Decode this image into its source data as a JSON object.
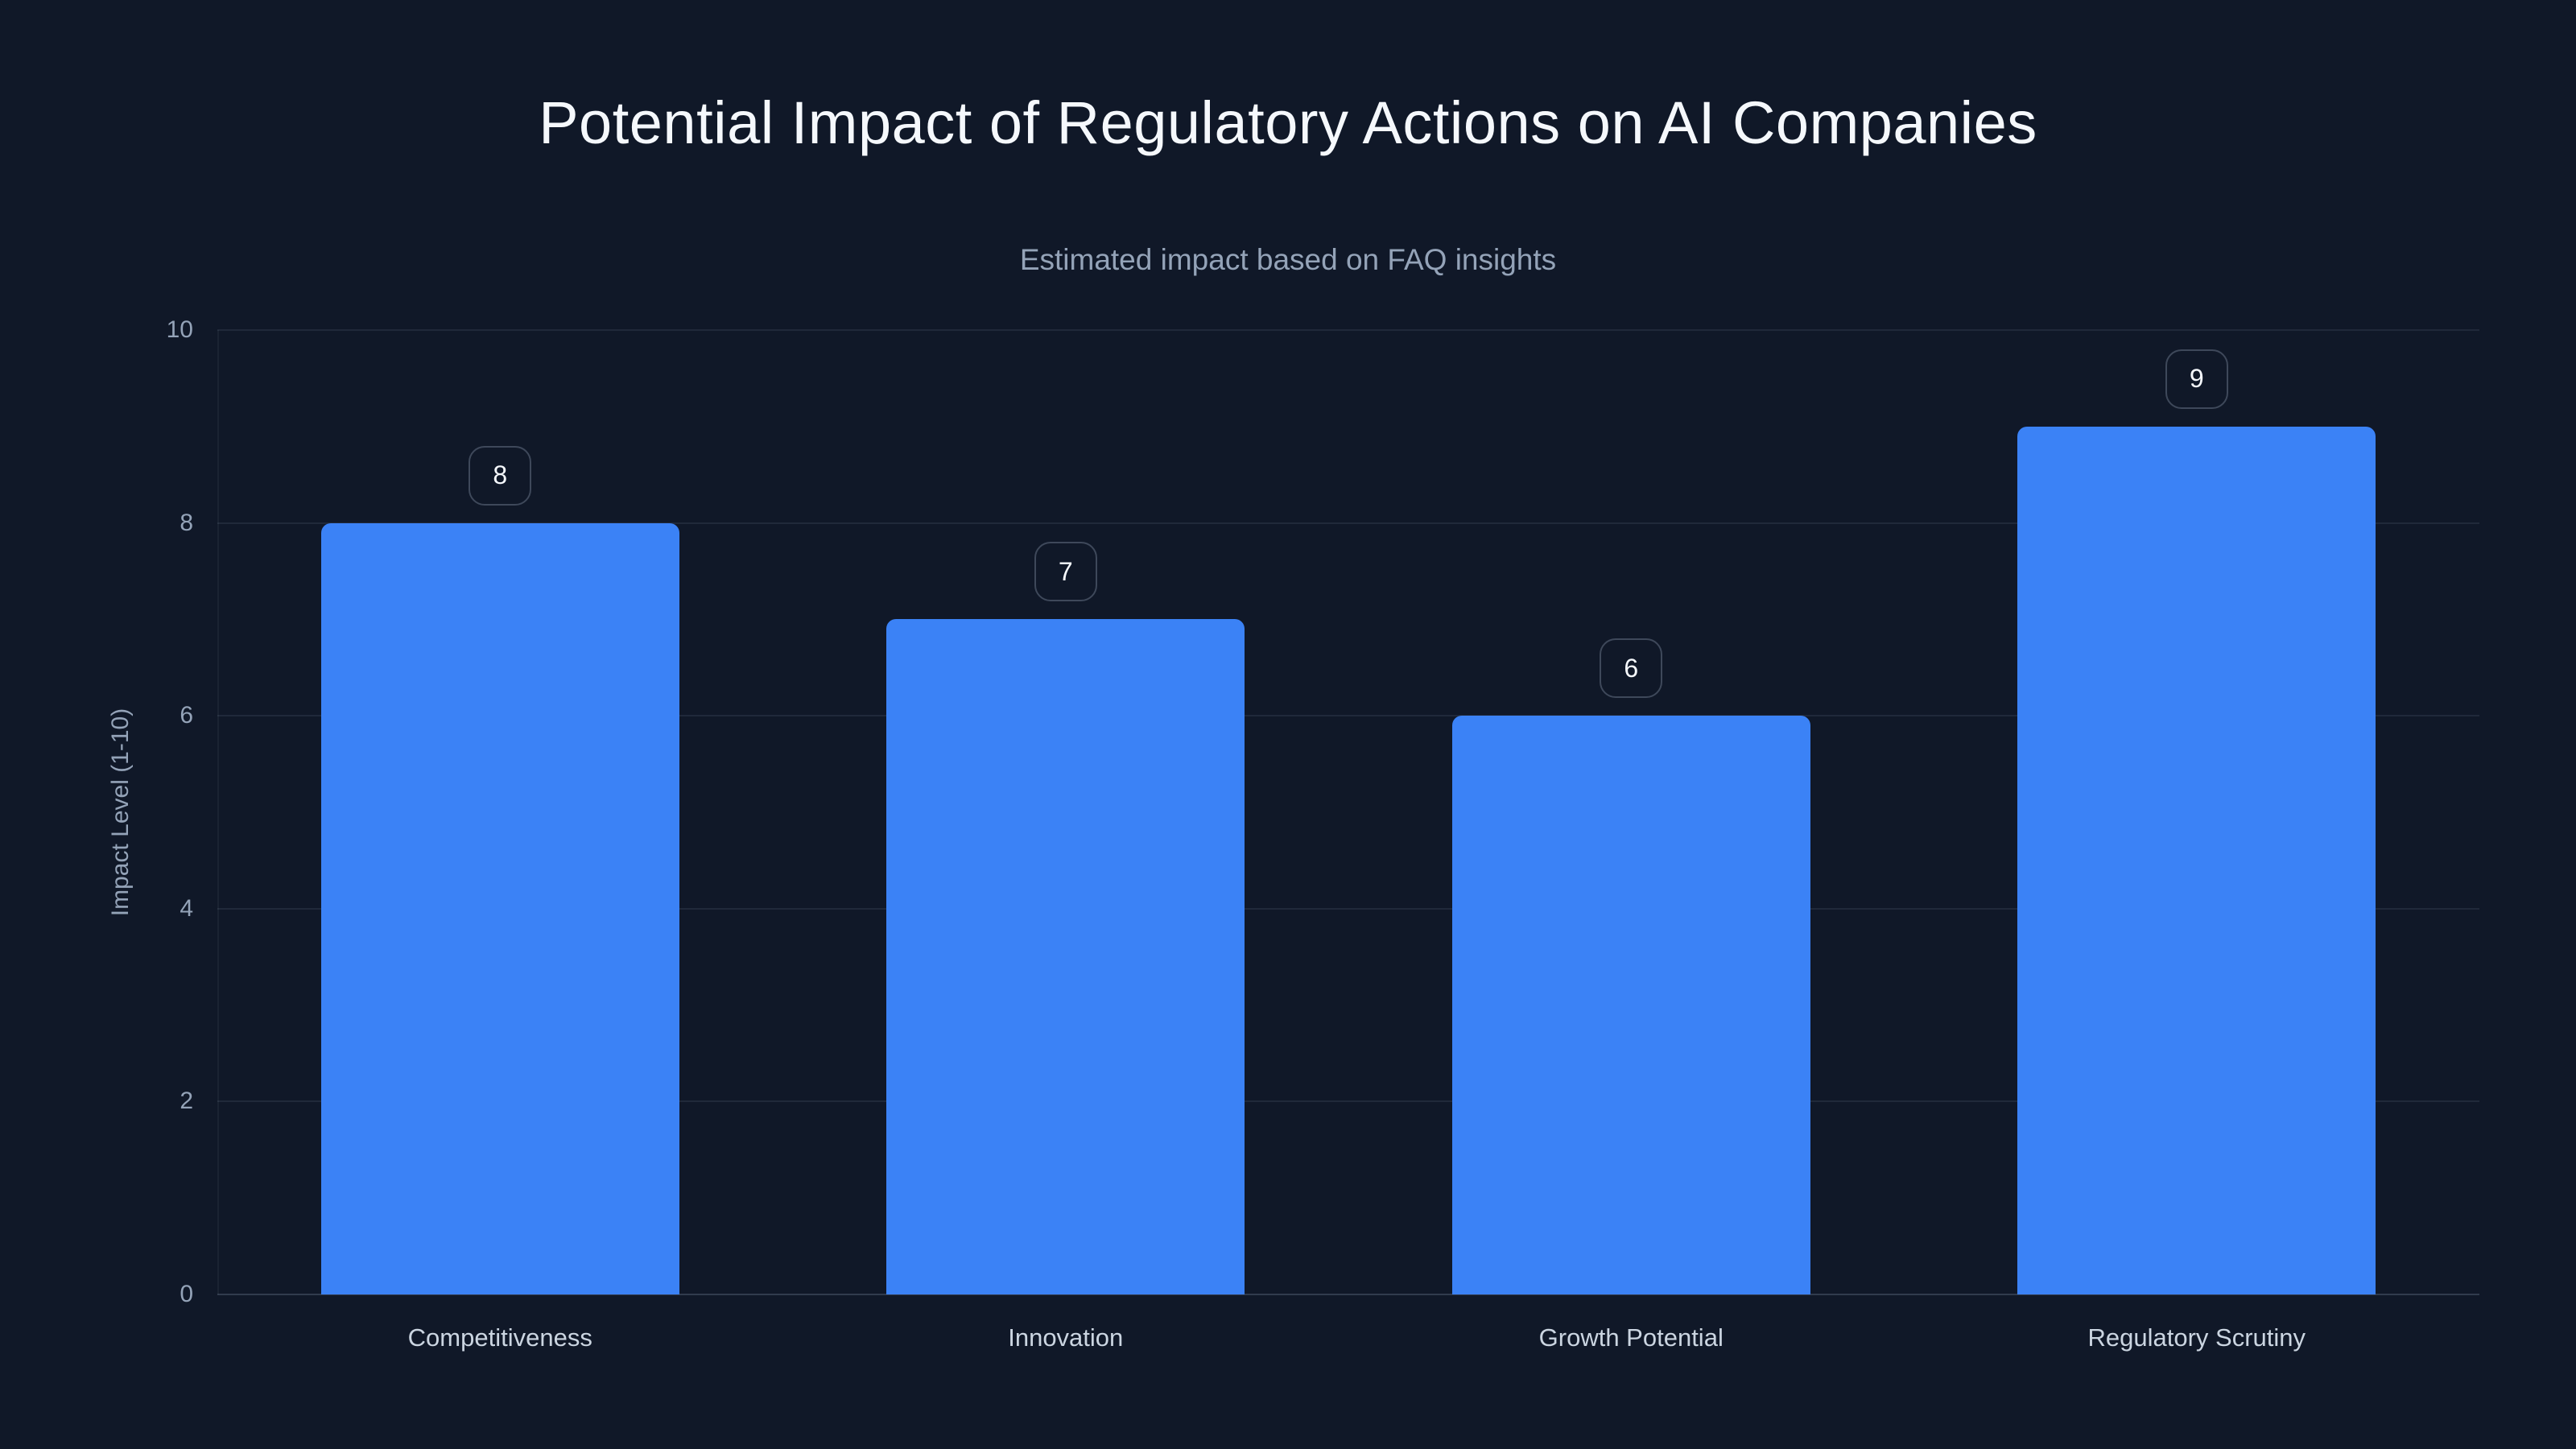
{
  "chart_data": {
    "type": "bar",
    "title": "Potential Impact of Regulatory Actions on AI Companies",
    "subtitle": "Estimated impact based on FAQ insights",
    "categories": [
      "Competitiveness",
      "Innovation",
      "Growth Potential",
      "Regulatory Scrutiny"
    ],
    "values": [
      8,
      7,
      6,
      9
    ],
    "value_labels": [
      "8",
      "7",
      "6",
      "9"
    ],
    "xlabel": "",
    "ylabel": "Impact Level (1-10)",
    "ylim": [
      0,
      10
    ],
    "yticks": [
      0,
      2,
      4,
      6,
      8,
      10
    ],
    "grid": true,
    "legend": false,
    "bar_color": "#3b82f6",
    "background_color": "#101828",
    "title_color": "#f5f8fc",
    "subtitle_color": "#94a3b8",
    "axis_text_color": "#94a3b8",
    "category_text_color": "#cbd5e1"
  }
}
